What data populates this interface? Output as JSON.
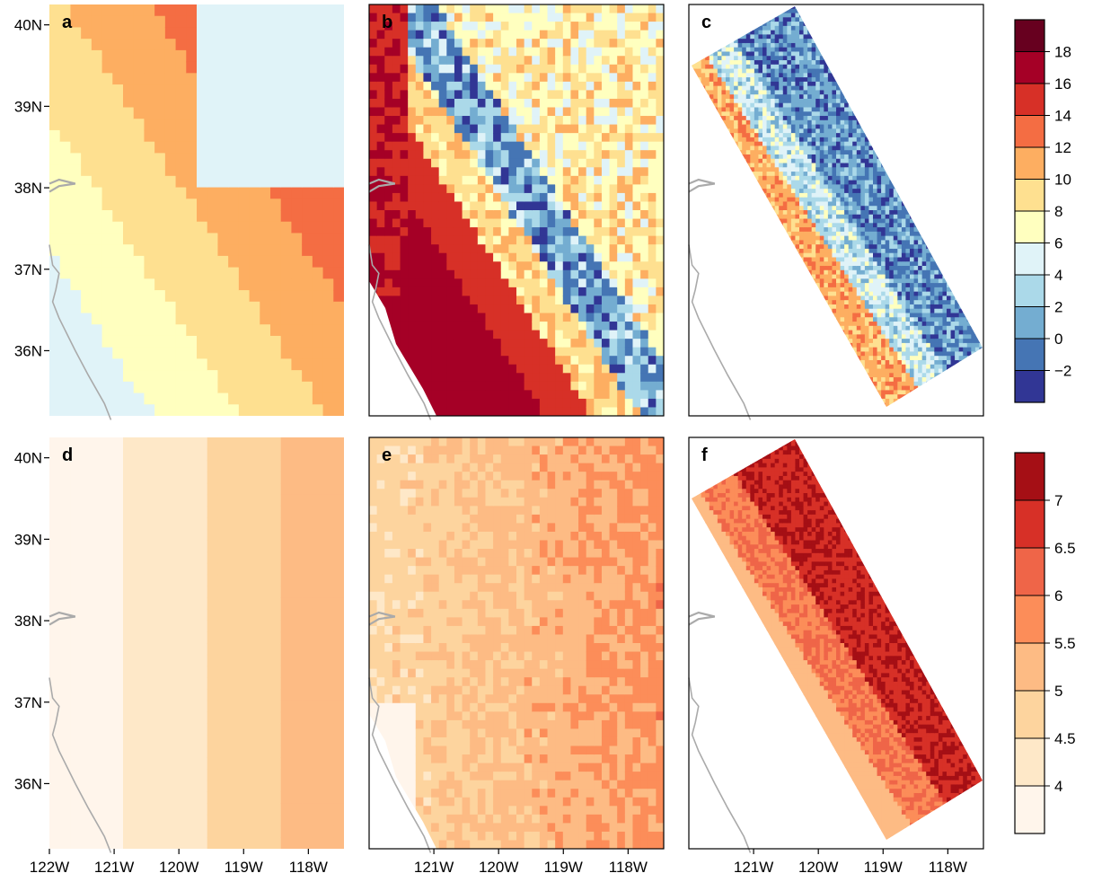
{
  "chart_data": {
    "type": "heatmap",
    "panels": [
      {
        "label": "a",
        "row": 0,
        "col": 0,
        "pattern": "smooth",
        "colorbar": "top"
      },
      {
        "label": "b",
        "row": 0,
        "col": 1,
        "pattern": "medium",
        "colorbar": "top"
      },
      {
        "label": "c",
        "row": 0,
        "col": 2,
        "pattern": "fine",
        "colorbar": "top"
      },
      {
        "label": "d",
        "row": 1,
        "col": 0,
        "pattern": "smooth",
        "colorbar": "bottom"
      },
      {
        "label": "e",
        "row": 1,
        "col": 1,
        "pattern": "medium",
        "colorbar": "bottom"
      },
      {
        "label": "f",
        "row": 1,
        "col": 2,
        "pattern": "fine",
        "colorbar": "bottom"
      }
    ],
    "lat_labels": [
      "40N",
      "39N",
      "38N",
      "37N",
      "36N"
    ],
    "lat_values": [
      40,
      39,
      38,
      37,
      36
    ],
    "lon_labels_col0": [
      "122W",
      "121W",
      "120W",
      "119W",
      "118W"
    ],
    "lon_values_col0": [
      -122,
      -121,
      -120,
      -119,
      -118
    ],
    "lon_labels_other": [
      "121W",
      "120W",
      "119W",
      "118W"
    ],
    "lon_values_other": [
      -121,
      -120,
      -119,
      -118
    ],
    "colorbars": {
      "top": {
        "tick_labels": [
          "18",
          "16",
          "14",
          "12",
          "10",
          "8",
          "6",
          "4",
          "2",
          "0",
          "−2"
        ],
        "colors": [
          "#67001f",
          "#a50026",
          "#d73027",
          "#f46d43",
          "#fdae61",
          "#fee090",
          "#ffffbf",
          "#e0f3f8",
          "#abd9e9",
          "#74add1",
          "#4575b4",
          "#313695"
        ]
      },
      "bottom": {
        "tick_labels": [
          "7",
          "6.5",
          "6",
          "5.5",
          "5",
          "4.5",
          "4"
        ],
        "colors": [
          "#a50f15",
          "#d73027",
          "#ef6548",
          "#fc8d59",
          "#fdbb84",
          "#fdd49e",
          "#fee8c8",
          "#fff5eb"
        ]
      }
    },
    "coastline_color": "#aaaaaa"
  }
}
